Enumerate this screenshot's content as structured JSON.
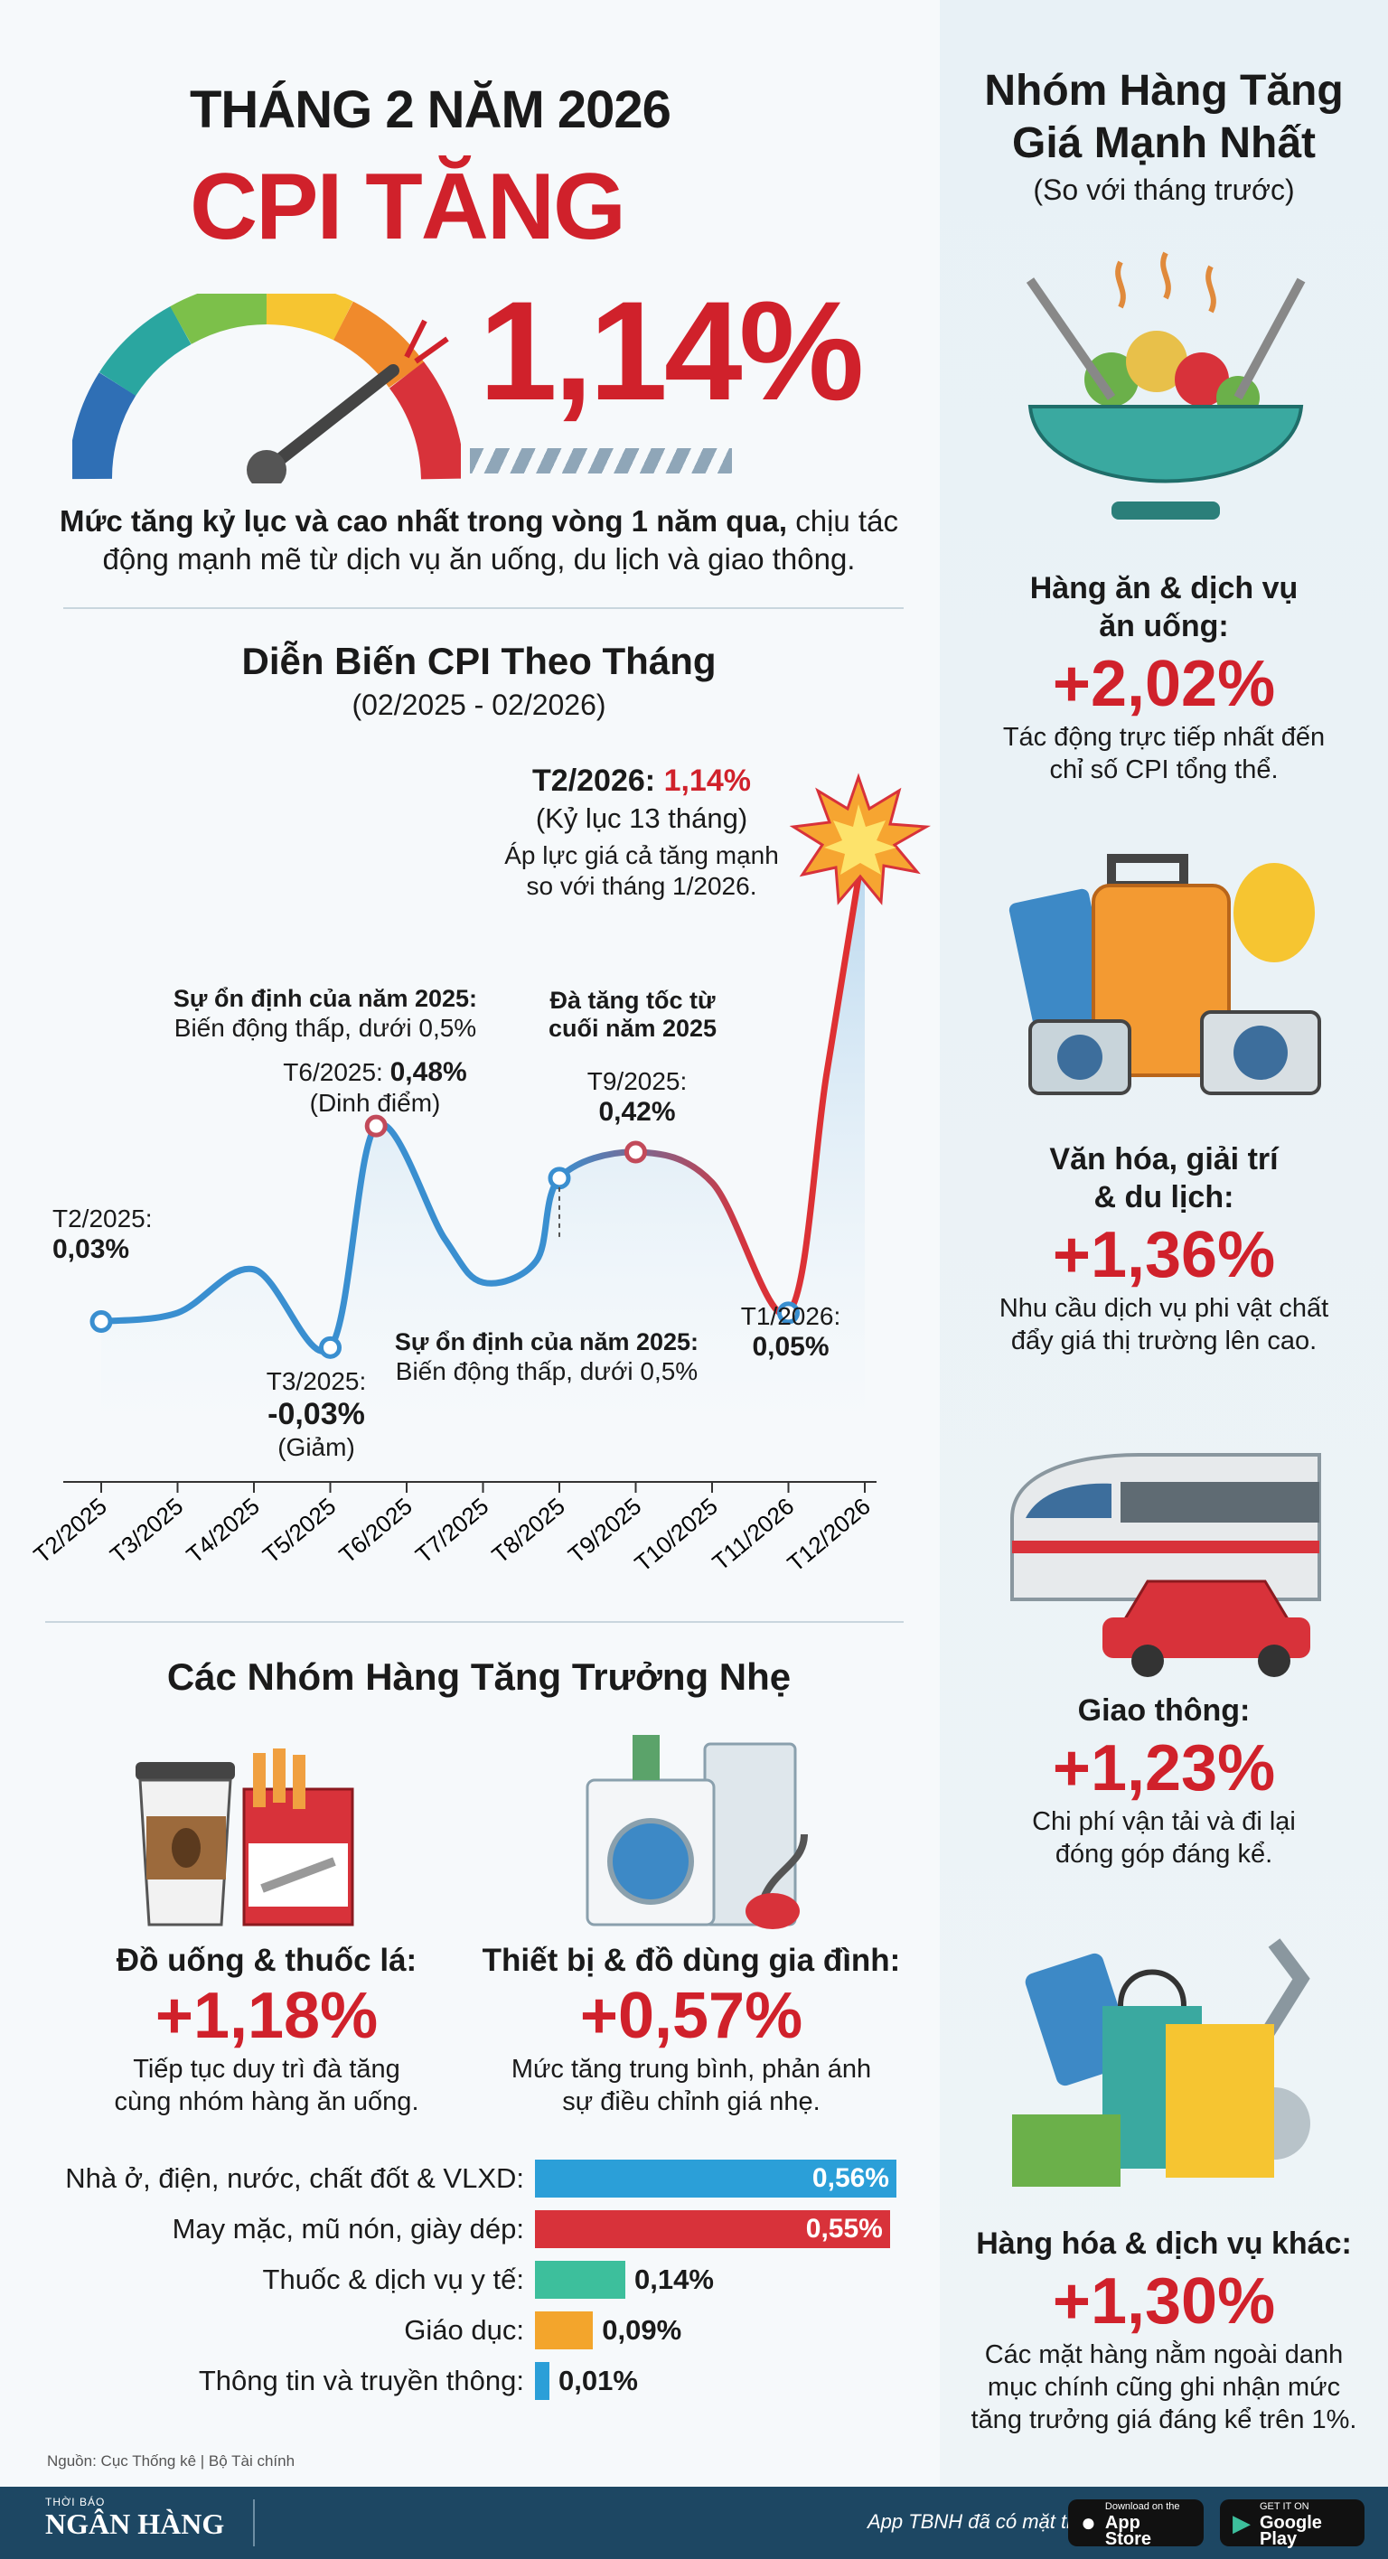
{
  "header": {
    "title": "THÁNG 2 NĂM 2026",
    "cpi_label": "CPI TĂNG",
    "cpi_value": "1,14%",
    "desc_bold": "Mức tăng kỷ lục và cao nhất trong vòng 1 năm qua,",
    "desc_rest": " chịu tác động mạnh mẽ từ dịch vụ ăn uống, du lịch và giao thông."
  },
  "chart_section": {
    "title": "Diễn Biến CPI Theo Tháng",
    "subtitle": "(02/2025 - 02/2026)"
  },
  "chart_data": {
    "type": "line",
    "title": "Diễn Biến CPI Theo Tháng",
    "subtitle": "(02/2025 - 02/2026)",
    "x_tick_labels": [
      "T2/2025",
      "T3/2025",
      "T4/2025",
      "T5/2025",
      "T6/2025",
      "T7/2025",
      "T8/2025",
      "T9/2025",
      "T10/2025",
      "T11/2026",
      "T12/2026"
    ],
    "x": [
      0,
      1,
      2,
      3,
      3.6,
      4.5,
      5,
      5.7,
      6,
      7,
      8,
      9,
      9.5,
      10
    ],
    "y": [
      0.03,
      0.05,
      0.15,
      -0.03,
      0.48,
      0.22,
      0.12,
      0.17,
      0.36,
      0.42,
      0.35,
      0.05,
      0.6,
      1.14
    ],
    "ylim": [
      -0.1,
      1.2
    ],
    "grid": false,
    "legend": "none",
    "line_color_start": "#3a8fd0",
    "line_color_end": "#e03030",
    "annotations": [
      {
        "label": "T2/2025:",
        "value": "0,03%"
      },
      {
        "label": "T3/2025:",
        "value": "-0,03%",
        "note": "(Giảm)"
      },
      {
        "label": "T6/2025:",
        "value": "0,48%",
        "note": "(Dinh điểm)"
      },
      {
        "label": "T9/2025:",
        "value": "0,42%"
      },
      {
        "label": "T1/2026:",
        "value": "0,05%"
      },
      {
        "label": "T2/2026:",
        "value": "1,14%",
        "note": "(Kỷ lục 13 tháng)",
        "extra1": "Áp lực giá cả tăng mạnh",
        "extra2": "so với tháng 1/2026."
      }
    ],
    "notes": [
      {
        "title": "Sự ổn định của năm 2025:",
        "text": "Biến động thấp, dưới 0,5%"
      },
      {
        "title": "Đà tăng tốc từ",
        "text": "cuối năm 2025"
      },
      {
        "title": "Sự ổn định của năm 2025:",
        "text": "Biến động thấp, dưới 0,5%"
      }
    ]
  },
  "moderate": {
    "title": "Các Nhóm Hàng Tăng Trưởng Nhẹ",
    "items": [
      {
        "name": "Đồ uống & thuốc lá:",
        "pct": "+1,18%",
        "desc1": "Tiếp tục duy trì đà tăng",
        "desc2": "cùng nhóm hàng ăn uống."
      },
      {
        "name": "Thiết bị & đồ dùng gia đình:",
        "pct": "+0,57%",
        "desc1": "Mức tăng trung bình, phản ánh",
        "desc2": "sự điều chỉnh giá nhẹ."
      }
    ]
  },
  "bars": [
    {
      "label": "Nhà ở, điện, nước, chất đốt & VLXD:",
      "value": 0.56,
      "text": "0,56%",
      "color": "#2b9fd8"
    },
    {
      "label": "May mặc, mũ nón, giày dép:",
      "value": 0.55,
      "text": "0,55%",
      "color": "#d8323a"
    },
    {
      "label": "Thuốc & dịch vụ y tế:",
      "value": 0.14,
      "text": "0,14%",
      "color": "#3dbf9c"
    },
    {
      "label": "Giáo dục:",
      "value": 0.09,
      "text": "0,09%",
      "color": "#f3a52c"
    },
    {
      "label": "Thông tin và truyền thông:",
      "value": 0.01,
      "text": "0,01%",
      "color": "#2b9fd8"
    }
  ],
  "source": "Nguồn: Cục Thống kê | Bộ Tài chính",
  "right": {
    "title1": "Nhóm Hàng Tăng",
    "title2": "Giá Mạnh Nhất",
    "subtitle": "(So với tháng trước)",
    "items": [
      {
        "name1": "Hàng ăn & dịch vụ",
        "name2": "ăn uống:",
        "pct": "+2,02%",
        "desc1": "Tác động trực tiếp nhất đến",
        "desc2": "chỉ số CPI tổng thể.",
        "icon": "food-bowl-icon"
      },
      {
        "name1": "Văn hóa, giải trí",
        "name2": "& du lịch:",
        "pct": "+1,36%",
        "desc1": "Nhu cầu dịch vụ phi vật chất",
        "desc2": "đẩy giá thị trường lên cao.",
        "icon": "luggage-icon"
      },
      {
        "name1": "Giao thông:",
        "name2": "",
        "pct": "+1,23%",
        "desc1": "Chi phí vận tải và đi lại",
        "desc2": "đóng góp đáng kể.",
        "icon": "train-car-icon"
      },
      {
        "name1": "Hàng hóa & dịch vụ khác:",
        "name2": "",
        "pct": "+1,30%",
        "desc1": "Các mặt hàng nằm ngoài danh",
        "desc2": "mục chính cũng ghi nhận mức",
        "desc3": "tăng trưởng giá đáng kể trên 1%.",
        "icon": "shopping-bags-icon"
      }
    ]
  },
  "footer": {
    "brand_top": "THỜI BÁO",
    "brand": "NGÂN HÀNG",
    "app_text": "App TBNH đã có mặt trên",
    "appstore_small": "Download on the",
    "appstore": "App Store",
    "gplay_small": "GET IT ON",
    "gplay": "Google Play"
  }
}
